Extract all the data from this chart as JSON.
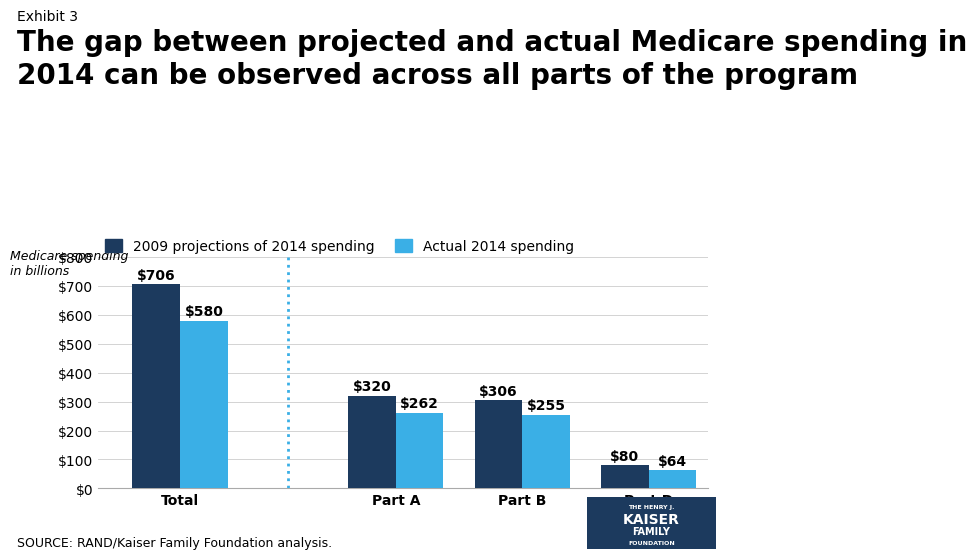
{
  "exhibit_label": "Exhibit 3",
  "title_line1": "The gap between projected and actual Medicare spending in",
  "title_line2": "2014 can be observed across all parts of the program",
  "ylabel": "Medicare spending\nin billions",
  "ylim": [
    0,
    800
  ],
  "yticks": [
    0,
    100,
    200,
    300,
    400,
    500,
    600,
    700,
    800
  ],
  "ytick_labels": [
    "$0",
    "$100",
    "$200",
    "$300",
    "$400",
    "$500",
    "$600",
    "$700",
    "$800"
  ],
  "categories": [
    "Total",
    "Part A",
    "Part B",
    "Part D"
  ],
  "projected": [
    706,
    320,
    306,
    80
  ],
  "actual": [
    580,
    262,
    255,
    64
  ],
  "projected_color": "#1c3a5e",
  "actual_color": "#3aafe6",
  "legend_projected": "2009 projections of 2014 spending",
  "legend_actual": "Actual 2014 spending",
  "source_text": "SOURCE: RAND/Kaiser Family Foundation analysis.",
  "bar_width": 0.32,
  "background_color": "#ffffff",
  "title_fontsize": 20,
  "exhibit_fontsize": 10,
  "ylabel_fontsize": 9,
  "tick_fontsize": 10,
  "legend_fontsize": 10,
  "source_fontsize": 9,
  "value_fontsize": 10,
  "group_positions": [
    0.4,
    1.85,
    2.7,
    3.55
  ]
}
